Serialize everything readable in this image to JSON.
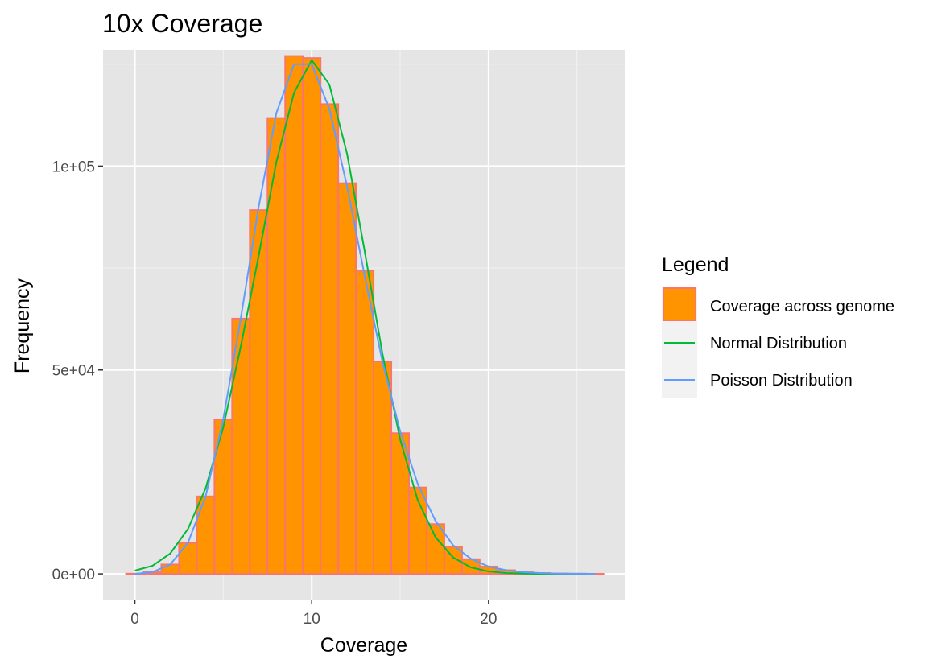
{
  "chart_data": {
    "type": "bar",
    "title": "10x Coverage",
    "xlabel": "Coverage",
    "ylabel": "Frequency",
    "xlim": [
      -1.8,
      27.7
    ],
    "ylim": [
      -6300,
      128500
    ],
    "x_ticks": [
      0,
      10,
      20
    ],
    "x_tick_labels": [
      "0",
      "10",
      "20"
    ],
    "y_ticks": [
      0,
      50000,
      100000
    ],
    "y_tick_labels": [
      "0e+00",
      "5e+04",
      "1e+05"
    ],
    "grid": true,
    "legend_position": "right",
    "legend_title": "Legend",
    "bins": {
      "width": 1,
      "centers": [
        0,
        1,
        2,
        3,
        4,
        5,
        6,
        7,
        8,
        9,
        10,
        11,
        12,
        13,
        14,
        15,
        16,
        17,
        18,
        19,
        20,
        21,
        22,
        23,
        24,
        25,
        26
      ],
      "values": [
        50,
        450,
        2300,
        7600,
        19000,
        37900,
        62600,
        89200,
        111800,
        127000,
        126500,
        115200,
        95800,
        74300,
        52000,
        34500,
        21200,
        12200,
        6700,
        3600,
        1800,
        900,
        400,
        200,
        100,
        50,
        20
      ],
      "name": "Coverage across genome",
      "fill": "#ff9400",
      "stroke": "#f8766d"
    },
    "series": [
      {
        "name": "Normal Distribution",
        "color": "#00ba38",
        "x": [
          0,
          1,
          2,
          3,
          4,
          5,
          6,
          7,
          8,
          9,
          10,
          11,
          12,
          13,
          14,
          15,
          16,
          17,
          18,
          19,
          20,
          21,
          22,
          23,
          24,
          25,
          26
        ],
        "values": [
          800,
          2000,
          5000,
          11000,
          21000,
          36000,
          56000,
          78000,
          101000,
          118000,
          126000,
          120000,
          103000,
          79000,
          54000,
          33000,
          18000,
          9000,
          4000,
          1600,
          600,
          200,
          60,
          20,
          5,
          1,
          0
        ]
      },
      {
        "name": "Poisson Distribution",
        "color": "#619cff",
        "x": [
          0,
          1,
          2,
          3,
          4,
          5,
          6,
          7,
          8,
          9,
          10,
          11,
          12,
          13,
          14,
          15,
          16,
          17,
          18,
          19,
          20,
          21,
          22,
          23,
          24,
          25,
          26
        ],
        "values": [
          0,
          450,
          2300,
          7600,
          19000,
          38000,
          63000,
          90000,
          113000,
          125000,
          125000,
          114000,
          95000,
          73000,
          52000,
          35000,
          22000,
          13000,
          7000,
          3700,
          1800,
          900,
          400,
          200,
          70,
          30,
          10
        ]
      }
    ]
  }
}
